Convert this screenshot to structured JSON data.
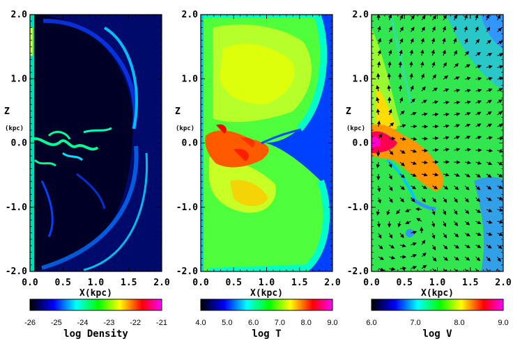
{
  "chart_data": [
    {
      "type": "heatmap",
      "xlabel": "X(kpc)",
      "ylabel": "Z",
      "ylabel_unit": "(kpc)",
      "xlim": [
        0.0,
        2.0
      ],
      "ylim": [
        -2.0,
        2.0
      ],
      "x_ticks": [
        "0.0",
        "0.5",
        "1.0",
        "1.5",
        "2.0"
      ],
      "y_ticks": [
        "2.0",
        "1.0",
        "0.0",
        "-1.0",
        "-2.0"
      ],
      "colorbar": {
        "label": "log Density",
        "range": [
          -26,
          -21
        ],
        "ticks": [
          "-26",
          "-25",
          "-24",
          "-23",
          "-22",
          "-21"
        ]
      }
    },
    {
      "type": "heatmap",
      "xlabel": "X(kpc)",
      "ylabel": "Z",
      "ylabel_unit": "(kpc)",
      "xlim": [
        0.0,
        2.0
      ],
      "ylim": [
        -2.0,
        2.0
      ],
      "x_ticks": [
        "0.0",
        "0.5",
        "1.0",
        "1.5",
        "2.0"
      ],
      "y_ticks": [
        "2.0",
        "1.0",
        "0.0",
        "-1.0",
        "-2.0"
      ],
      "colorbar": {
        "label": "log T",
        "range": [
          4.0,
          9.0
        ],
        "ticks": [
          "4.0",
          "5.0",
          "6.0",
          "7.0",
          "8.0",
          "9.0"
        ]
      }
    },
    {
      "type": "heatmap",
      "xlabel": "X(kpc)",
      "ylabel": "Z",
      "ylabel_unit": "(kpc)",
      "xlim": [
        0.0,
        2.0
      ],
      "ylim": [
        -2.0,
        2.0
      ],
      "x_ticks": [
        "0.0",
        "0.5",
        "1.0",
        "1.5",
        "2.0"
      ],
      "y_ticks": [
        "2.0",
        "1.0",
        "0.0",
        "-1.0",
        "-2.0"
      ],
      "overlay": "velocity vectors",
      "colorbar": {
        "label": "log V",
        "range": [
          6.0,
          9.0
        ],
        "ticks": [
          "6.0",
          "7.0",
          "8.0",
          "9.0"
        ]
      }
    }
  ],
  "colormap": [
    "#000000",
    "#0000ff",
    "#00ffff",
    "#00ff00",
    "#ffff00",
    "#ff0000",
    "#ff00ff"
  ]
}
